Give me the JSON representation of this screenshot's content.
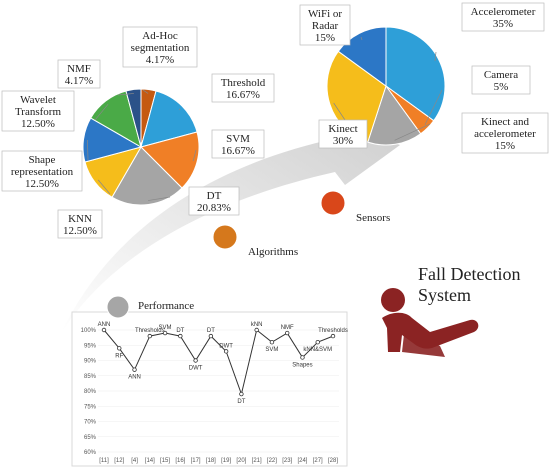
{
  "figure": {
    "title_line1": "Fall Detection",
    "title_line2": "System",
    "stages": [
      {
        "label": "Sensors",
        "color": "#d9471a"
      },
      {
        "label": "Algorithms",
        "color": "#d5781c"
      },
      {
        "label": "Performance",
        "color": "#a6a6a6"
      }
    ]
  },
  "chart_data": [
    {
      "type": "pie",
      "labels": [
        "Ad-Hoc segmentation",
        "Threshold",
        "SVM",
        "DT",
        "KNN",
        "Shape representation",
        "Wavelet Transform",
        "NMF"
      ],
      "values": [
        4.17,
        16.67,
        16.67,
        20.83,
        12.5,
        12.5,
        12.5,
        4.17
      ],
      "value_labels": [
        "4.17%",
        "16.67%",
        "16.67%",
        "20.83%",
        "12.50%",
        "12.50%",
        "12.50%",
        "4.17%"
      ],
      "label_lines": [
        [
          "Ad-Hoc",
          "segmentation",
          "4.17%"
        ],
        [
          "Threshold",
          "16.67%"
        ],
        [
          "SVM",
          "16.67%"
        ],
        [
          "DT",
          "20.83%"
        ],
        [
          "KNN",
          "12.50%"
        ],
        [
          "Shape",
          "representation",
          "12.50%"
        ],
        [
          "Wavelet",
          "Transform",
          "12.50%"
        ],
        [
          "NMF",
          "4.17%"
        ]
      ],
      "colors": [
        "#c55a11",
        "#2e9fd8",
        "#f07f26",
        "#a5a5a5",
        "#f5bd1b",
        "#2c77c6",
        "#4aaa47",
        "#2b5289"
      ]
    },
    {
      "type": "pie",
      "labels": [
        "Accelerometer",
        "Camera",
        "Kinect and accelerometer",
        "Kinect",
        "WiFi or Radar"
      ],
      "values": [
        35,
        5,
        15,
        30,
        15
      ],
      "value_labels": [
        "35%",
        "5%",
        "15%",
        "30%",
        "15%"
      ],
      "label_lines": [
        [
          "Accelerometer",
          "35%"
        ],
        [
          "Camera",
          "5%"
        ],
        [
          "Kinect and",
          "accelerometer",
          "15%"
        ],
        [
          "Kinect",
          "30%"
        ],
        [
          "WiFi or",
          "Radar",
          "15%"
        ]
      ],
      "colors": [
        "#2e9fd8",
        "#f07f26",
        "#a5a5a5",
        "#f5bd1b",
        "#2c77c6"
      ]
    },
    {
      "type": "line",
      "categories": [
        "[11]",
        "[12]",
        "[4]",
        "[14]",
        "[15]",
        "[16]",
        "[17]",
        "[18]",
        "[19]",
        "[20]",
        "[21]",
        "[22]",
        "[23]",
        "[24]",
        "[27]",
        "[28]"
      ],
      "values": [
        100,
        94,
        87,
        98,
        99,
        98,
        90,
        98,
        93,
        79,
        100,
        96,
        99,
        91,
        96,
        98
      ],
      "point_labels": [
        "ANN",
        "RF",
        "ANN",
        "Thresholds",
        "SVM",
        "DT",
        "DWT",
        "DT",
        "DWT",
        "DT",
        "kNN",
        "SVM",
        "NMF",
        "Shapes",
        "kNN&SVM",
        "Thresholds"
      ],
      "yticks": [
        "100%",
        "95%",
        "90%",
        "85%",
        "80%",
        "75%",
        "70%",
        "65%",
        "60%"
      ],
      "ylim": [
        60,
        100
      ],
      "color": "#333333"
    }
  ]
}
